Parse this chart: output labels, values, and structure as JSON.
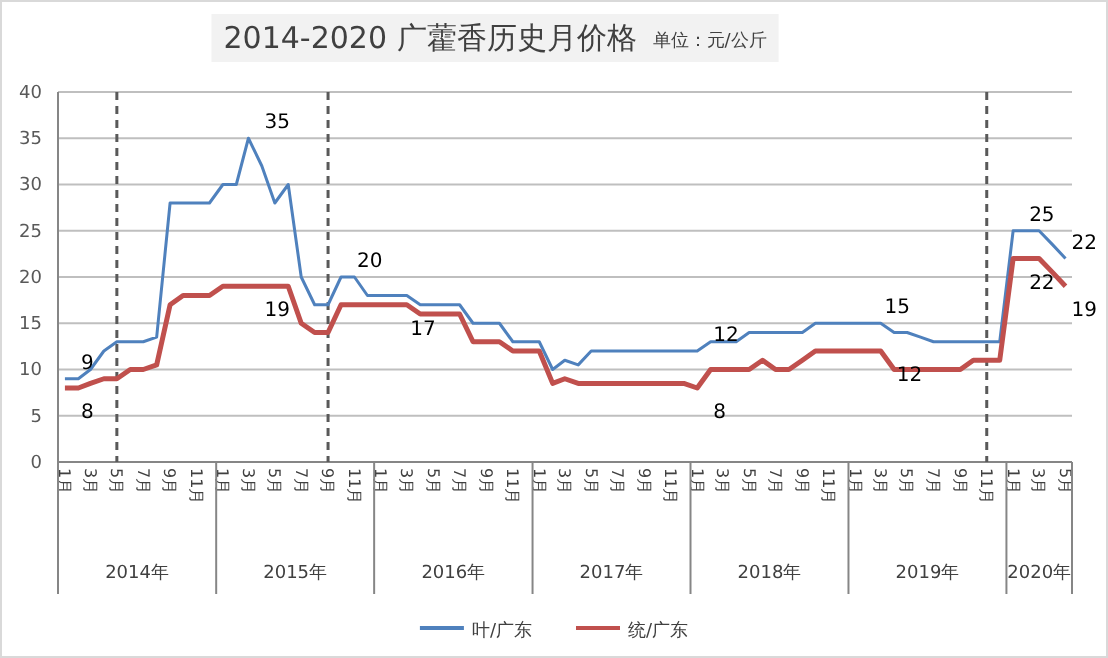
{
  "chart_data": {
    "type": "line",
    "title": "2014-2020 广藿香历史月价格",
    "subtitle": "单位：元/公斤",
    "x": [
      "2014-01",
      "2014-02",
      "2014-03",
      "2014-04",
      "2014-05",
      "2014-06",
      "2014-07",
      "2014-08",
      "2014-09",
      "2014-10",
      "2014-11",
      "2014-12",
      "2015-01",
      "2015-02",
      "2015-03",
      "2015-04",
      "2015-05",
      "2015-06",
      "2015-07",
      "2015-08",
      "2015-09",
      "2015-10",
      "2015-11",
      "2015-12",
      "2016-01",
      "2016-02",
      "2016-03",
      "2016-04",
      "2016-05",
      "2016-06",
      "2016-07",
      "2016-08",
      "2016-09",
      "2016-10",
      "2016-11",
      "2016-12",
      "2017-01",
      "2017-02",
      "2017-03",
      "2017-04",
      "2017-05",
      "2017-06",
      "2017-07",
      "2017-08",
      "2017-09",
      "2017-10",
      "2017-11",
      "2017-12",
      "2018-01",
      "2018-02",
      "2018-03",
      "2018-04",
      "2018-05",
      "2018-06",
      "2018-07",
      "2018-08",
      "2018-09",
      "2018-10",
      "2018-11",
      "2018-12",
      "2019-01",
      "2019-02",
      "2019-03",
      "2019-04",
      "2019-05",
      "2019-06",
      "2019-07",
      "2019-08",
      "2019-09",
      "2019-10",
      "2019-11",
      "2019-12",
      "2020-01",
      "2020-02",
      "2020-03",
      "2020-04",
      "2020-05"
    ],
    "series": [
      {
        "name": "叶/广东",
        "color": "#4f81bd",
        "values": [
          9,
          9,
          10,
          12,
          13,
          13,
          13,
          13.5,
          28,
          28,
          28,
          28,
          30,
          30,
          35,
          32,
          28,
          30,
          20,
          17,
          17,
          20,
          20,
          18,
          18,
          18,
          18,
          17,
          17,
          17,
          17,
          15,
          15,
          15,
          13,
          13,
          13,
          10,
          11,
          10.5,
          12,
          12,
          12,
          12,
          12,
          12,
          12,
          12,
          12,
          13,
          13,
          13,
          14,
          14,
          14,
          14,
          14,
          15,
          15,
          15,
          15,
          15,
          15,
          14,
          14,
          13.5,
          13,
          13,
          13,
          13,
          13,
          13,
          25,
          25,
          25,
          23.5,
          22
        ]
      },
      {
        "name": "统/广东",
        "color": "#c0504d",
        "values": [
          8,
          8,
          8.5,
          9,
          9,
          10,
          10,
          10.5,
          17,
          18,
          18,
          18,
          19,
          19,
          19,
          19,
          19,
          19,
          15,
          14,
          14,
          17,
          17,
          17,
          17,
          17,
          17,
          16,
          16,
          16,
          16,
          13,
          13,
          13,
          12,
          12,
          12,
          8.5,
          9,
          8.5,
          8.5,
          8.5,
          8.5,
          8.5,
          8.5,
          8.5,
          8.5,
          8.5,
          8,
          10,
          10,
          10,
          10,
          11,
          10,
          10,
          11,
          12,
          12,
          12,
          12,
          12,
          12,
          10,
          10,
          10,
          10,
          10,
          10,
          11,
          11,
          11,
          22,
          22,
          22,
          20.5,
          19
        ]
      }
    ],
    "xlim": [
      "2013-12-16",
      "2020-05-16"
    ],
    "ylim": [
      0,
      40
    ],
    "yticks": [
      0,
      5,
      10,
      15,
      20,
      25,
      30,
      35,
      40
    ],
    "xticks": [
      {
        "value": "2014-01",
        "label": "1月"
      },
      {
        "value": "2014-03",
        "label": "3月"
      },
      {
        "value": "2014-05",
        "label": "5月"
      },
      {
        "value": "2014-07",
        "label": "7月"
      },
      {
        "value": "2014-09",
        "label": "9月"
      },
      {
        "value": "2014-11",
        "label": "11月"
      },
      {
        "value": "2015-01",
        "label": "1月"
      },
      {
        "value": "2015-03",
        "label": "3月"
      },
      {
        "value": "2015-05",
        "label": "5月"
      },
      {
        "value": "2015-07",
        "label": "7月"
      },
      {
        "value": "2015-09",
        "label": "9月"
      },
      {
        "value": "2015-11",
        "label": "11月"
      },
      {
        "value": "2016-01",
        "label": "1月"
      },
      {
        "value": "2016-03",
        "label": "3月"
      },
      {
        "value": "2016-05",
        "label": "5月"
      },
      {
        "value": "2016-07",
        "label": "7月"
      },
      {
        "value": "2016-09",
        "label": "9月"
      },
      {
        "value": "2016-11",
        "label": "11月"
      },
      {
        "value": "2017-01",
        "label": "1月"
      },
      {
        "value": "2017-03",
        "label": "3月"
      },
      {
        "value": "2017-05",
        "label": "5月"
      },
      {
        "value": "2017-07",
        "label": "7月"
      },
      {
        "value": "2017-09",
        "label": "9月"
      },
      {
        "value": "2017-11",
        "label": "11月"
      },
      {
        "value": "2018-01",
        "label": "1月"
      },
      {
        "value": "2018-03",
        "label": "3月"
      },
      {
        "value": "2018-05",
        "label": "5月"
      },
      {
        "value": "2018-07",
        "label": "7月"
      },
      {
        "value": "2018-09",
        "label": "9月"
      },
      {
        "value": "2018-11",
        "label": "11月"
      },
      {
        "value": "2019-01",
        "label": "1月"
      },
      {
        "value": "2019-03",
        "label": "3月"
      },
      {
        "value": "2019-05",
        "label": "5月"
      },
      {
        "value": "2019-07",
        "label": "7月"
      },
      {
        "value": "2019-09",
        "label": "9月"
      },
      {
        "value": "2019-11",
        "label": "11月"
      },
      {
        "value": "2020-01",
        "label": "1月"
      },
      {
        "value": "2020-03",
        "label": "3月"
      },
      {
        "value": "2020-05",
        "label": "5月"
      }
    ],
    "ref_lines": [
      {
        "axis": "x",
        "value": "2014-05",
        "line_style": "dashed",
        "color": "#595959"
      },
      {
        "axis": "x",
        "value": "2015-09",
        "line_style": "dashed",
        "color": "#595959"
      },
      {
        "axis": "x",
        "value": "2019-11",
        "line_style": "dashed",
        "color": "#595959"
      }
    ],
    "annotations": [
      "2014年",
      "2015年",
      "2016年",
      "2017年",
      "2018年",
      "2019年",
      "2020年",
      {
        "text": "9",
        "x": "2014-01",
        "y": 9
      },
      {
        "text": "8",
        "x": "2014-01",
        "y": 8
      },
      {
        "text": "35",
        "x": "2015-03",
        "y": 35
      },
      {
        "text": "19",
        "x": "2015-03",
        "y": 19
      },
      {
        "text": "20",
        "x": "2015-10",
        "y": 20
      },
      {
        "text": "17",
        "x": "2016-02",
        "y": 17
      },
      {
        "text": "12",
        "x": "2018-01",
        "y": 12
      },
      {
        "text": "8",
        "x": "2018-01",
        "y": 8
      },
      {
        "text": "15",
        "x": "2019-02",
        "y": 15
      },
      {
        "text": "12",
        "x": "2019-03",
        "y": 12
      },
      {
        "text": "25",
        "x": "2020-01",
        "y": 25
      },
      {
        "text": "22",
        "x": "2020-01",
        "y": 22
      },
      {
        "text": "22",
        "x": "2020-05",
        "y": 22
      },
      {
        "text": "19",
        "x": "2020-05",
        "y": 19
      }
    ],
    "grid": "y",
    "legend": "bottom",
    "line_style": "solid",
    "marker": "none"
  }
}
